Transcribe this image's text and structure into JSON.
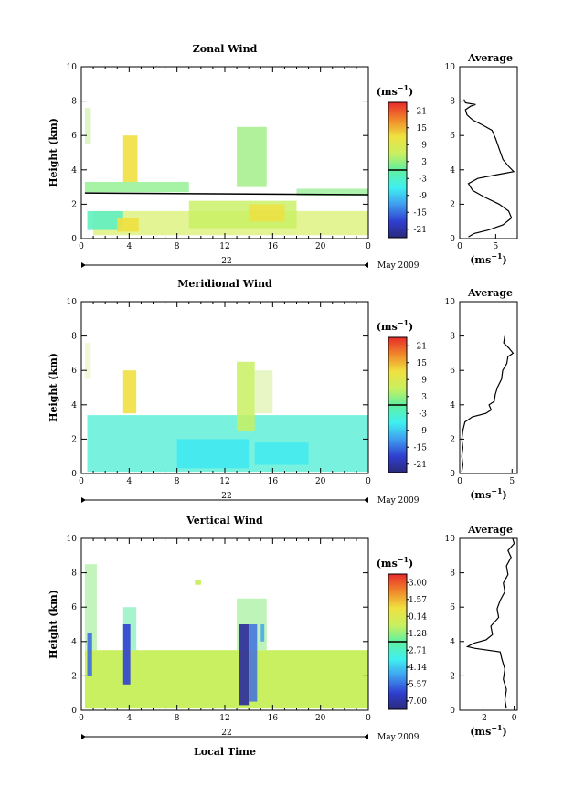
{
  "chart_data": [
    {
      "type": "heatmap",
      "title": "Zonal Wind",
      "ylabel": "Height (km)",
      "xlim": [
        0,
        24
      ],
      "ylim": [
        0,
        10
      ],
      "x_ticks": [
        "0",
        "4",
        "8",
        "12",
        "16",
        "20",
        "0"
      ],
      "y_ticks": [
        "0",
        "2",
        "4",
        "6",
        "8",
        "10"
      ],
      "day_label": "22",
      "date_label": "May 2009",
      "colorbar": {
        "unit_base": "(ms",
        "unit_exp": "−1",
        "unit_close": ")",
        "ticks": [
          "21",
          "15",
          "9",
          "3",
          "-3",
          "-9",
          "-15",
          "-21"
        ],
        "range": [
          -24,
          24
        ]
      },
      "profile": {
        "title": "Average",
        "xlabel_base": "(ms",
        "xlabel_exp": "−1",
        "xlabel_close": ")",
        "x_ticks": [
          "0",
          "5"
        ],
        "xlim": [
          0,
          8
        ],
        "y_ticks": [
          "0",
          "2",
          "4",
          "6",
          "8",
          "10"
        ],
        "points": [
          [
            1.2,
            0.1
          ],
          [
            2,
            0.3
          ],
          [
            4,
            0.5
          ],
          [
            6,
            0.8
          ],
          [
            7.2,
            1.2
          ],
          [
            6.8,
            1.6
          ],
          [
            5.5,
            2.0
          ],
          [
            3.5,
            2.4
          ],
          [
            1.8,
            2.8
          ],
          [
            1.2,
            3.2
          ],
          [
            2.5,
            3.5
          ],
          [
            5,
            3.7
          ],
          [
            7.5,
            3.9
          ],
          [
            6.8,
            4.2
          ],
          [
            6,
            4.6
          ],
          [
            5.5,
            5.2
          ],
          [
            5,
            5.8
          ],
          [
            4.5,
            6.3
          ],
          [
            3.2,
            6.6
          ],
          [
            1.8,
            6.9
          ],
          [
            1,
            7.2
          ],
          [
            0.8,
            7.5
          ],
          [
            1.5,
            7.7
          ],
          [
            2.2,
            7.8
          ],
          [
            0.8,
            7.9
          ],
          [
            0.6,
            8.1
          ]
        ]
      }
    },
    {
      "type": "heatmap",
      "title": "Meridional Wind",
      "ylabel": "Height (km)",
      "xlim": [
        0,
        24
      ],
      "ylim": [
        0,
        10
      ],
      "x_ticks": [
        "0",
        "4",
        "8",
        "12",
        "16",
        "20",
        "0"
      ],
      "y_ticks": [
        "0",
        "2",
        "4",
        "6",
        "8",
        "10"
      ],
      "day_label": "22",
      "date_label": "May 2009",
      "colorbar": {
        "unit_base": "(ms",
        "unit_exp": "−1",
        "unit_close": ")",
        "ticks": [
          "21",
          "15",
          "9",
          "3",
          "-3",
          "-9",
          "-15",
          "-21"
        ],
        "range": [
          -24,
          24
        ]
      },
      "profile": {
        "title": "Average",
        "xlabel_base": "(ms",
        "xlabel_exp": "−1",
        "xlabel_close": ")",
        "x_ticks": [
          "0",
          "5"
        ],
        "xlim": [
          0,
          5.5
        ],
        "y_ticks": [
          "0",
          "2",
          "4",
          "6",
          "8",
          "10"
        ],
        "points": [
          [
            0.2,
            0.1
          ],
          [
            0.3,
            0.5
          ],
          [
            0.2,
            1.0
          ],
          [
            0.3,
            1.5
          ],
          [
            0.2,
            2.0
          ],
          [
            0.3,
            2.5
          ],
          [
            0.5,
            3.0
          ],
          [
            1.2,
            3.3
          ],
          [
            2.5,
            3.5
          ],
          [
            3.0,
            3.7
          ],
          [
            2.8,
            4.0
          ],
          [
            3.3,
            4.2
          ],
          [
            3.4,
            4.6
          ],
          [
            3.6,
            5.0
          ],
          [
            4.0,
            5.5
          ],
          [
            4.1,
            6.0
          ],
          [
            4.5,
            6.4
          ],
          [
            4.6,
            6.8
          ],
          [
            5.1,
            7.0
          ],
          [
            4.7,
            7.3
          ],
          [
            4.2,
            7.6
          ],
          [
            4.3,
            8.0
          ]
        ]
      }
    },
    {
      "type": "heatmap",
      "title": "Vertical Wind",
      "xlabel": "Local Time",
      "ylabel": "Height (km)",
      "xlim": [
        0,
        24
      ],
      "ylim": [
        0,
        10
      ],
      "x_ticks": [
        "0",
        "4",
        "8",
        "12",
        "16",
        "20",
        "0"
      ],
      "y_ticks": [
        "0",
        "2",
        "4",
        "6",
        "8",
        "10"
      ],
      "day_label": "22",
      "date_label": "May 2009",
      "colorbar": {
        "unit_base": "(ms",
        "unit_exp": "−1",
        "unit_close": ")",
        "ticks": [
          "3.00",
          "1.57",
          "0.14",
          "-1.28",
          "-2.71",
          "-4.14",
          "-5.57",
          "-7.00"
        ],
        "range": [
          -8.4,
          4.4
        ]
      },
      "profile": {
        "title": "Average",
        "xlabel_base": "(ms",
        "xlabel_exp": "−1",
        "xlabel_close": ")",
        "x_ticks": [
          "-2",
          "0"
        ],
        "xlim": [
          -3.5,
          0.2
        ],
        "y_ticks": [
          "0",
          "2",
          "4",
          "6",
          "8",
          "10"
        ],
        "points": [
          [
            -0.5,
            0.1
          ],
          [
            -0.6,
            0.6
          ],
          [
            -0.5,
            1.2
          ],
          [
            -0.7,
            1.8
          ],
          [
            -0.6,
            2.4
          ],
          [
            -0.8,
            3.0
          ],
          [
            -0.9,
            3.4
          ],
          [
            -2.5,
            3.6
          ],
          [
            -3.0,
            3.7
          ],
          [
            -2.6,
            3.9
          ],
          [
            -1.8,
            4.1
          ],
          [
            -1.4,
            4.4
          ],
          [
            -1.5,
            4.9
          ],
          [
            -1.0,
            5.4
          ],
          [
            -1.1,
            5.9
          ],
          [
            -0.9,
            6.4
          ],
          [
            -0.6,
            6.9
          ],
          [
            -0.7,
            7.4
          ],
          [
            -0.4,
            7.9
          ],
          [
            -0.5,
            8.4
          ],
          [
            -0.2,
            8.9
          ],
          [
            -0.4,
            9.3
          ],
          [
            0.0,
            9.7
          ],
          [
            -0.1,
            10.0
          ]
        ]
      }
    }
  ]
}
